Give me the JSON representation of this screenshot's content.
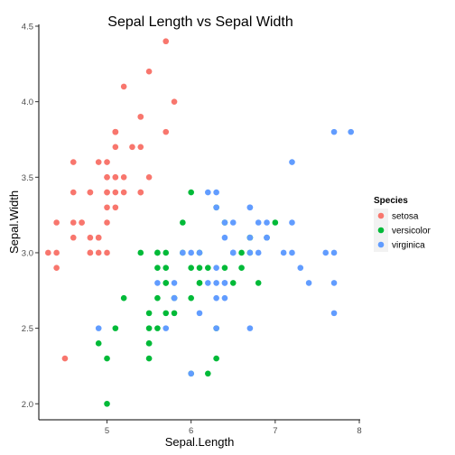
{
  "chart_data": {
    "type": "scatter",
    "title": "Sepal Length vs Sepal Width",
    "xlabel": "Sepal.Length",
    "ylabel": "Sepal.Width",
    "xlim": [
      4.2,
      8.0
    ],
    "ylim": [
      1.9,
      4.5
    ],
    "xticks": [
      5,
      6,
      7,
      8
    ],
    "xtick_labels": [
      "5",
      "6",
      "7",
      "8"
    ],
    "yticks": [
      2.0,
      2.5,
      3.0,
      3.5,
      4.0,
      4.5
    ],
    "ytick_labels": [
      "2.0",
      "2.5",
      "3.0",
      "3.5",
      "4.0",
      "4.5"
    ],
    "grid": false,
    "legend": {
      "title": "Species",
      "placement": "right"
    },
    "series": [
      {
        "name": "setosa",
        "color": "#F8766D",
        "points": [
          [
            5.1,
            3.5
          ],
          [
            4.9,
            3.0
          ],
          [
            4.7,
            3.2
          ],
          [
            4.6,
            3.1
          ],
          [
            5.0,
            3.6
          ],
          [
            5.4,
            3.9
          ],
          [
            4.6,
            3.4
          ],
          [
            5.0,
            3.4
          ],
          [
            4.4,
            2.9
          ],
          [
            4.9,
            3.1
          ],
          [
            5.4,
            3.7
          ],
          [
            4.8,
            3.4
          ],
          [
            4.8,
            3.0
          ],
          [
            4.3,
            3.0
          ],
          [
            5.8,
            4.0
          ],
          [
            5.7,
            4.4
          ],
          [
            5.4,
            3.9
          ],
          [
            5.1,
            3.5
          ],
          [
            5.7,
            3.8
          ],
          [
            5.1,
            3.8
          ],
          [
            5.4,
            3.4
          ],
          [
            5.1,
            3.7
          ],
          [
            4.6,
            3.6
          ],
          [
            5.1,
            3.3
          ],
          [
            4.8,
            3.4
          ],
          [
            5.0,
            3.0
          ],
          [
            5.0,
            3.4
          ],
          [
            5.2,
            3.5
          ],
          [
            5.2,
            3.4
          ],
          [
            4.7,
            3.2
          ],
          [
            4.8,
            3.1
          ],
          [
            5.4,
            3.4
          ],
          [
            5.2,
            4.1
          ],
          [
            5.5,
            4.2
          ],
          [
            4.9,
            3.1
          ],
          [
            5.0,
            3.2
          ],
          [
            5.5,
            3.5
          ],
          [
            4.9,
            3.6
          ],
          [
            4.4,
            3.0
          ],
          [
            5.1,
            3.4
          ],
          [
            5.0,
            3.5
          ],
          [
            4.5,
            2.3
          ],
          [
            4.4,
            3.2
          ],
          [
            5.0,
            3.5
          ],
          [
            5.1,
            3.8
          ],
          [
            4.8,
            3.0
          ],
          [
            5.1,
            3.8
          ],
          [
            4.6,
            3.2
          ],
          [
            5.3,
            3.7
          ],
          [
            5.0,
            3.3
          ]
        ]
      },
      {
        "name": "versicolor",
        "color": "#00BA38",
        "points": [
          [
            7.0,
            3.2
          ],
          [
            6.4,
            3.2
          ],
          [
            6.9,
            3.1
          ],
          [
            5.5,
            2.3
          ],
          [
            6.5,
            2.8
          ],
          [
            5.7,
            2.8
          ],
          [
            6.3,
            3.3
          ],
          [
            4.9,
            2.4
          ],
          [
            6.6,
            2.9
          ],
          [
            5.2,
            2.7
          ],
          [
            5.0,
            2.0
          ],
          [
            5.9,
            3.0
          ],
          [
            6.0,
            2.2
          ],
          [
            6.1,
            2.9
          ],
          [
            5.6,
            2.9
          ],
          [
            6.7,
            3.1
          ],
          [
            5.6,
            3.0
          ],
          [
            5.8,
            2.7
          ],
          [
            6.2,
            2.2
          ],
          [
            5.6,
            2.5
          ],
          [
            5.9,
            3.2
          ],
          [
            6.1,
            2.8
          ],
          [
            6.3,
            2.5
          ],
          [
            6.1,
            2.8
          ],
          [
            6.4,
            2.9
          ],
          [
            6.6,
            3.0
          ],
          [
            6.8,
            2.8
          ],
          [
            6.7,
            3.0
          ],
          [
            6.0,
            2.9
          ],
          [
            5.7,
            2.6
          ],
          [
            5.5,
            2.4
          ],
          [
            5.5,
            2.4
          ],
          [
            5.8,
            2.7
          ],
          [
            6.0,
            2.7
          ],
          [
            5.4,
            3.0
          ],
          [
            6.0,
            3.4
          ],
          [
            6.7,
            3.1
          ],
          [
            6.3,
            2.3
          ],
          [
            5.6,
            3.0
          ],
          [
            5.5,
            2.5
          ],
          [
            5.5,
            2.6
          ],
          [
            6.1,
            3.0
          ],
          [
            5.8,
            2.6
          ],
          [
            5.0,
            2.3
          ],
          [
            5.6,
            2.7
          ],
          [
            5.7,
            3.0
          ],
          [
            5.7,
            2.9
          ],
          [
            6.2,
            2.9
          ],
          [
            5.1,
            2.5
          ],
          [
            5.7,
            2.8
          ]
        ]
      },
      {
        "name": "virginica",
        "color": "#619CFF",
        "points": [
          [
            6.3,
            3.3
          ],
          [
            5.8,
            2.7
          ],
          [
            7.1,
            3.0
          ],
          [
            6.3,
            2.9
          ],
          [
            6.5,
            3.0
          ],
          [
            7.6,
            3.0
          ],
          [
            4.9,
            2.5
          ],
          [
            7.3,
            2.9
          ],
          [
            6.7,
            2.5
          ],
          [
            7.2,
            3.6
          ],
          [
            6.5,
            3.2
          ],
          [
            6.4,
            2.7
          ],
          [
            6.8,
            3.0
          ],
          [
            5.7,
            2.5
          ],
          [
            5.8,
            2.8
          ],
          [
            6.4,
            3.2
          ],
          [
            6.5,
            3.0
          ],
          [
            7.7,
            3.8
          ],
          [
            7.7,
            2.6
          ],
          [
            6.0,
            2.2
          ],
          [
            6.9,
            3.2
          ],
          [
            5.6,
            2.8
          ],
          [
            7.7,
            2.8
          ],
          [
            6.3,
            2.7
          ],
          [
            6.7,
            3.3
          ],
          [
            7.2,
            3.2
          ],
          [
            6.2,
            2.8
          ],
          [
            6.1,
            3.0
          ],
          [
            6.4,
            2.8
          ],
          [
            7.2,
            3.0
          ],
          [
            7.4,
            2.8
          ],
          [
            7.9,
            3.8
          ],
          [
            6.4,
            2.8
          ],
          [
            6.3,
            2.8
          ],
          [
            6.1,
            2.6
          ],
          [
            7.7,
            3.0
          ],
          [
            6.3,
            3.4
          ],
          [
            6.4,
            3.1
          ],
          [
            6.0,
            3.0
          ],
          [
            6.9,
            3.1
          ],
          [
            6.7,
            3.1
          ],
          [
            6.9,
            3.1
          ],
          [
            5.8,
            2.7
          ],
          [
            6.8,
            3.2
          ],
          [
            6.7,
            3.3
          ],
          [
            6.7,
            3.0
          ],
          [
            6.3,
            2.5
          ],
          [
            6.5,
            3.0
          ],
          [
            6.2,
            3.4
          ],
          [
            5.9,
            3.0
          ]
        ]
      }
    ]
  }
}
